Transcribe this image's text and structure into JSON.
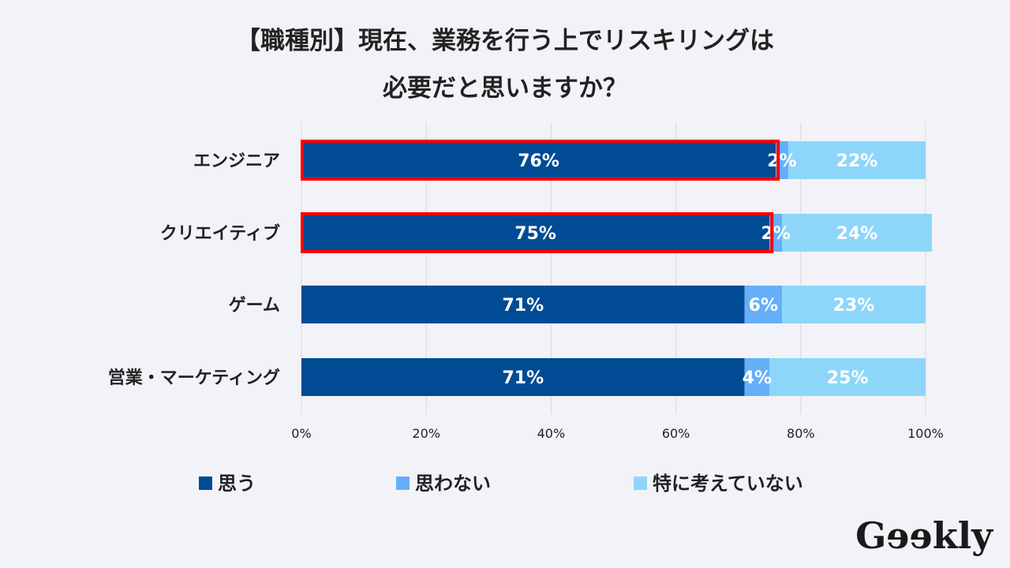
{
  "chart_data": {
    "type": "bar",
    "stacked": true,
    "orientation": "horizontal",
    "title": "【職種別】現在、業務を行う上でリスキリングは必要だと思いますか？",
    "title_lines": [
      "【職種別】現在、業務を行う上でリスキリングは",
      "必要だと思いますか？"
    ],
    "categories": [
      "エンジニア",
      "クリエイティブ",
      "ゲーム",
      "営業・マーケティング"
    ],
    "series": [
      {
        "name": "思う",
        "color": "#004b93",
        "values": [
          76,
          75,
          71,
          71
        ]
      },
      {
        "name": "思わない",
        "color": "#65aff8",
        "values": [
          2,
          2,
          6,
          4
        ]
      },
      {
        "name": "特に考えていない",
        "color": "#8dd6fa",
        "values": [
          22,
          24,
          23,
          25
        ]
      }
    ],
    "highlighted": [
      0,
      1
    ],
    "highlight_color": "#ff0000",
    "xlim": [
      0,
      100
    ],
    "xticks": [
      "0%",
      "20%",
      "40%",
      "60%",
      "80%",
      "100%"
    ],
    "grid": true,
    "legend_position": "bottom"
  },
  "logo": "Geekly"
}
